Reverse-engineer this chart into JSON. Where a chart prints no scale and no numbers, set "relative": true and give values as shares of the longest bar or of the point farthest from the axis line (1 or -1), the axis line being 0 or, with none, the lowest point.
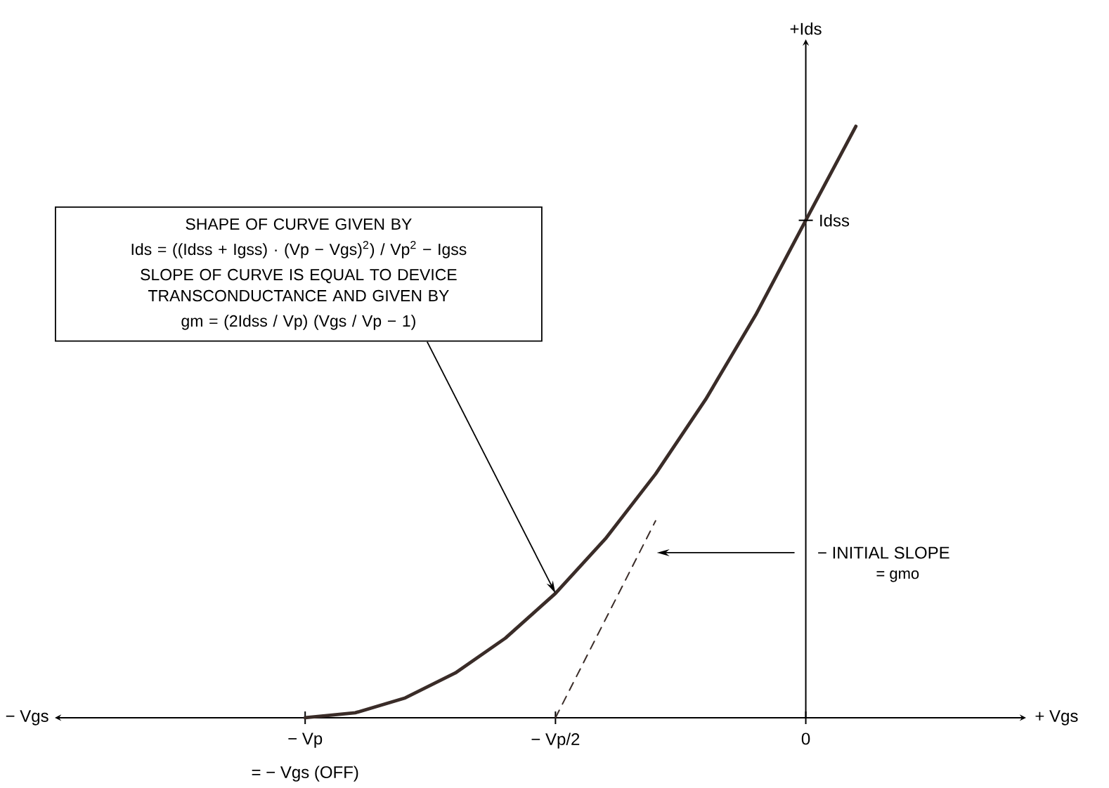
{
  "chart_data": {
    "type": "line",
    "relative": true,
    "xlabel": "+ Vgs",
    "categories": [
      null,
      null,
      null,
      null,
      null,
      "− Vp",
      null,
      null,
      null,
      null,
      "− Vp/2",
      null,
      null,
      null,
      null,
      "0",
      null,
      null,
      null,
      null
    ],
    "series": [
      {
        "color": "#3a2c28",
        "values": [
          null,
          null,
          null,
          null,
          null,
          0,
          0.0084,
          0.0336,
          0.0757,
          0.1346,
          0.2103,
          0.3028,
          0.4121,
          0.5382,
          0.6812,
          0.841,
          1,
          null,
          null,
          null
        ]
      },
      {
        "color": "#3a2c28",
        "line_style": "dashed",
        "values": [
          null,
          null,
          null,
          null,
          null,
          null,
          null,
          null,
          null,
          null,
          0,
          null,
          0.333,
          null,
          null,
          null,
          null,
          null,
          null,
          null
        ]
      }
    ],
    "annotations": [
      "− Vgs",
      "= − Vgs (OFF)",
      "SHAPE OF CURVE GIVEN BY",
      "Ids = ((Idss + Igss) · (Vp − Vgs)$^{2}$) / Vp$^{2}$ − Igss",
      "SLOPE OF CURVE IS EQUAL TO DEVICE TRANSCONDUCTANCE AND GIVEN BY",
      "gm = (2Idss / Vp) (Vgs / Vp − 1)",
      {
        "text": "Idss",
        "x": "0",
        "y": 0.841
      },
      "− INITIAL SLOPE",
      "= gmo",
      "+Ids"
    ]
  }
}
